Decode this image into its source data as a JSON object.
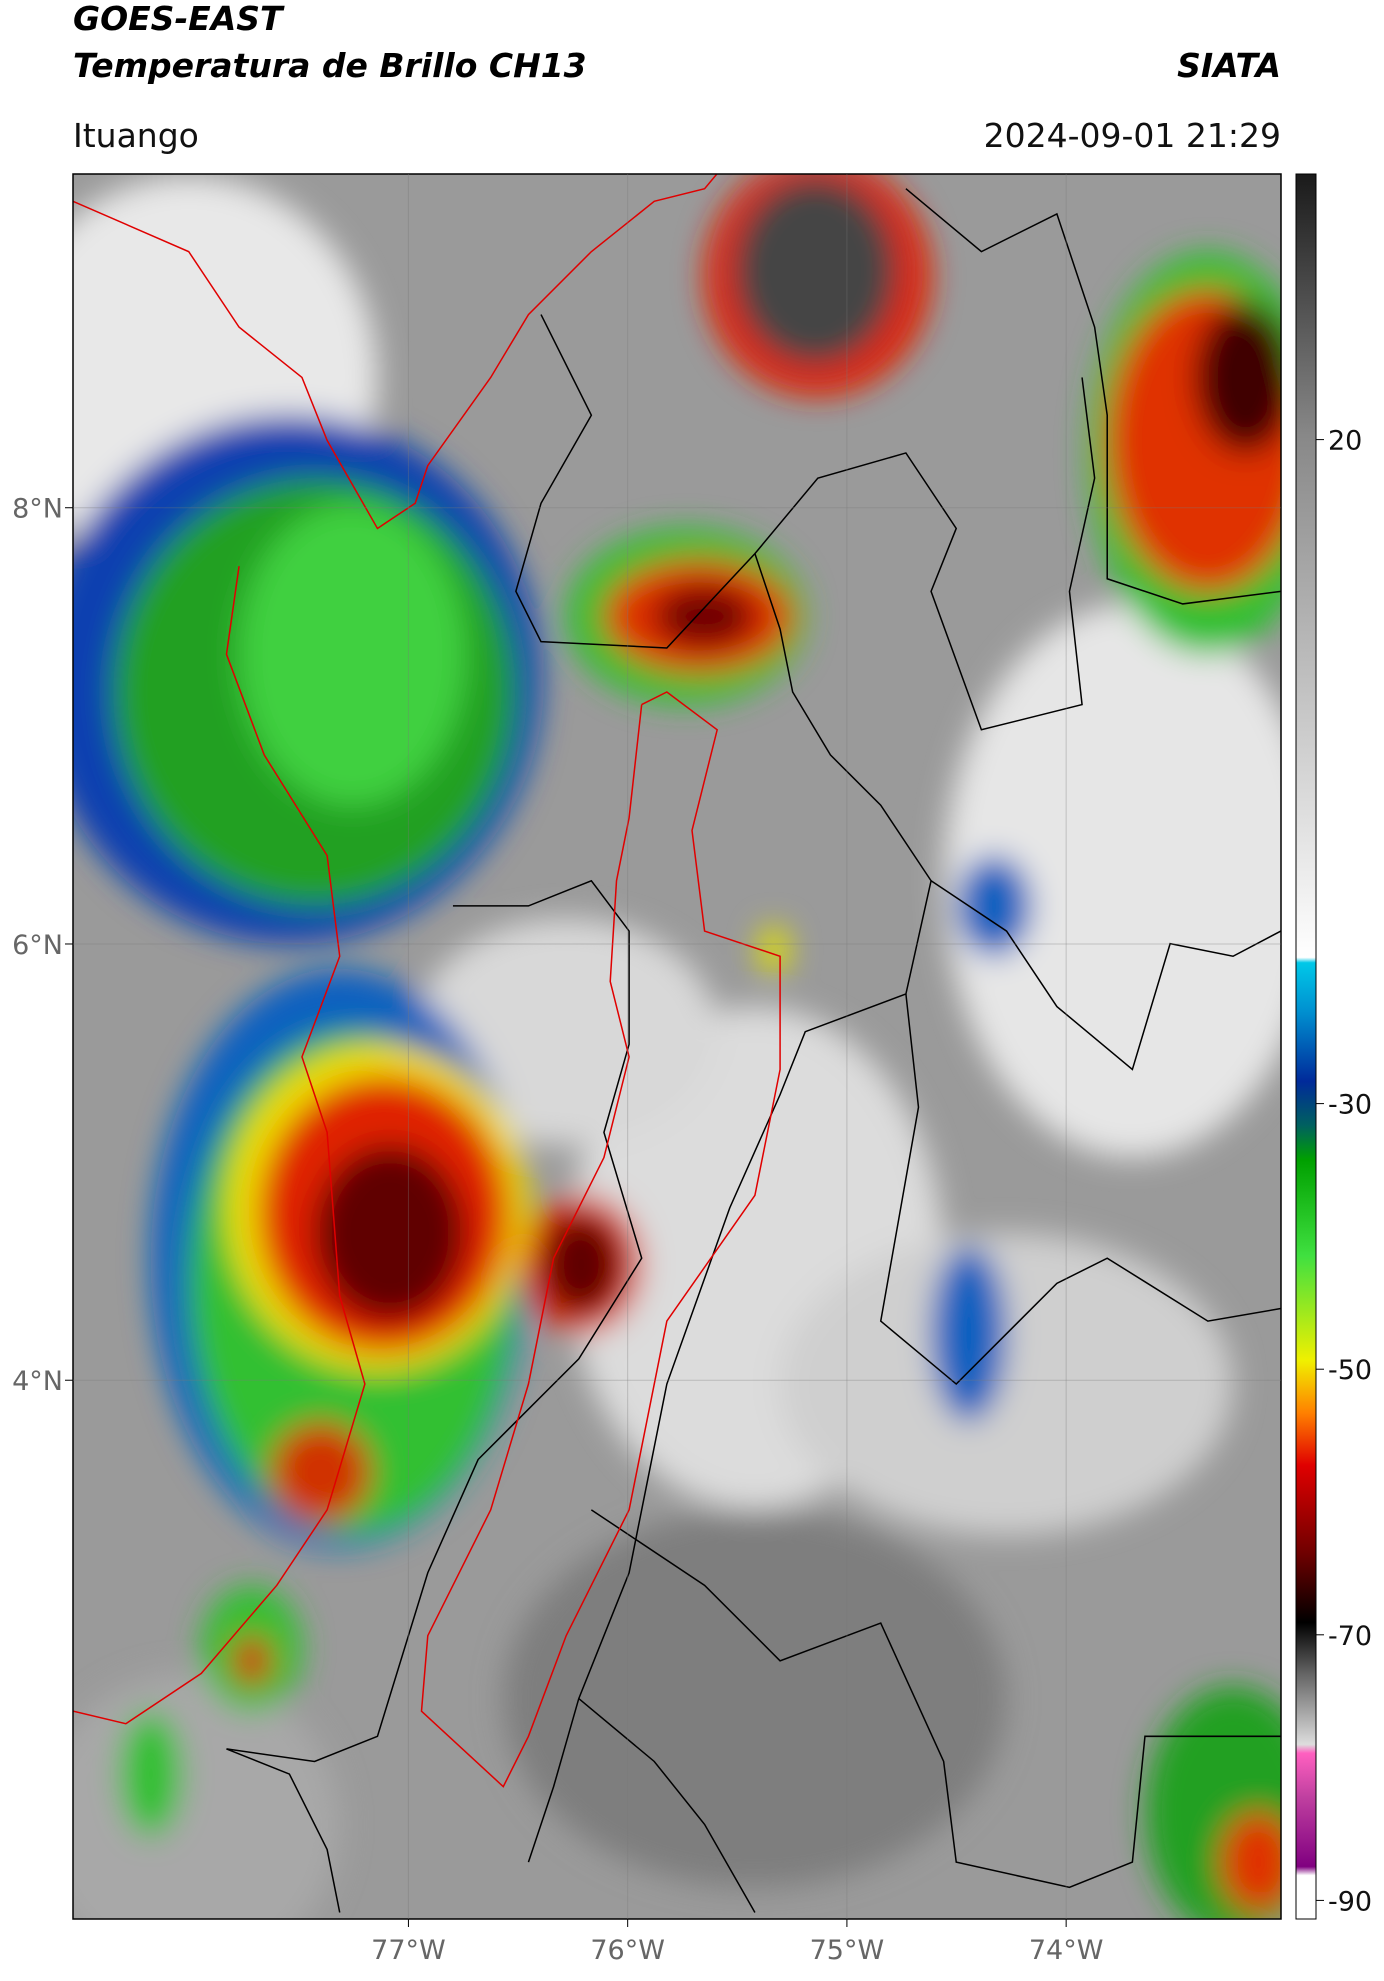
{
  "header": {
    "title": "GOES-EAST",
    "subtitle": "Temperatura de Brillo CH13",
    "brand": "SIATA",
    "location": "Ituango",
    "datetime": "2024-09-01 21:29"
  },
  "map": {
    "lon_range": [
      -78.53,
      -73.02
    ],
    "lat_range": [
      1.53,
      9.53
    ],
    "lon_ticks": [
      {
        "value": -77,
        "label": "77°W"
      },
      {
        "value": -76,
        "label": "76°W"
      },
      {
        "value": -75,
        "label": "75°W"
      },
      {
        "value": -74,
        "label": "74°W"
      }
    ],
    "lat_ticks": [
      {
        "value": 8,
        "label": "8°N"
      },
      {
        "value": 6,
        "label": "6°N"
      },
      {
        "value": 4,
        "label": "4°N"
      }
    ]
  },
  "colorbar": {
    "range": [
      -91.4,
      40
    ],
    "ticks": [
      20,
      -30,
      -50,
      -70,
      -90
    ]
  }
}
